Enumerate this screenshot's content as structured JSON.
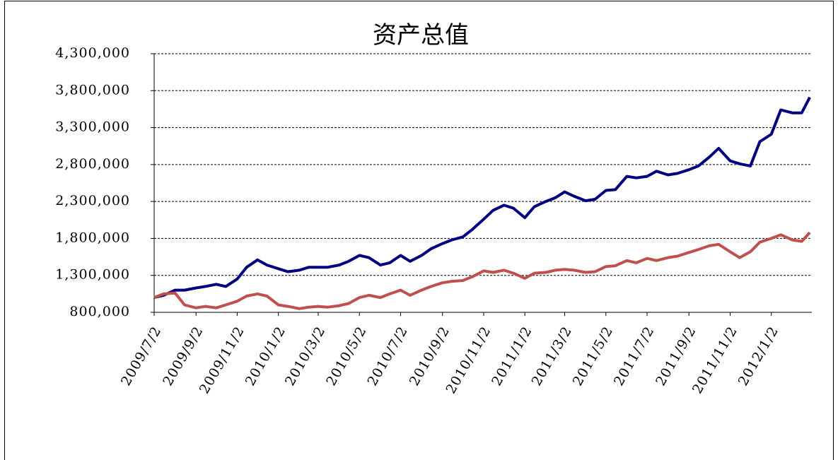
{
  "chart_data": {
    "type": "line",
    "title": "资产总值",
    "x": [
      "2009/7/2",
      "2009/7/16",
      "2009/8/2",
      "2009/8/16",
      "2009/9/2",
      "2009/9/16",
      "2009/10/2",
      "2009/10/16",
      "2009/11/2",
      "2009/11/16",
      "2009/12/2",
      "2009/12/16",
      "2010/1/2",
      "2010/1/16",
      "2010/2/2",
      "2010/2/16",
      "2010/3/2",
      "2010/3/16",
      "2010/4/2",
      "2010/4/16",
      "2010/5/2",
      "2010/5/16",
      "2010/6/2",
      "2010/6/16",
      "2010/7/2",
      "2010/7/16",
      "2010/8/2",
      "2010/8/16",
      "2010/9/2",
      "2010/9/16",
      "2010/10/2",
      "2010/10/16",
      "2010/11/2",
      "2010/11/16",
      "2010/12/2",
      "2010/12/16",
      "2011/1/2",
      "2011/1/16",
      "2011/2/2",
      "2011/2/16",
      "2011/3/2",
      "2011/3/16",
      "2011/4/2",
      "2011/4/16",
      "2011/5/2",
      "2011/5/16",
      "2011/6/2",
      "2011/6/16",
      "2011/7/2",
      "2011/7/16",
      "2011/8/2",
      "2011/8/16",
      "2011/9/2",
      "2011/9/16",
      "2011/10/2",
      "2011/10/16",
      "2011/11/2",
      "2011/11/16",
      "2011/12/2",
      "2011/12/16",
      "2012/1/2",
      "2012/1/16",
      "2012/2/2",
      "2012/2/16",
      "2012/2/28"
    ],
    "series": [
      {
        "color": "#000080",
        "values": [
          1000000,
          1030000,
          1100000,
          1100000,
          1130000,
          1150000,
          1180000,
          1150000,
          1250000,
          1410000,
          1510000,
          1440000,
          1390000,
          1350000,
          1370000,
          1410000,
          1410000,
          1410000,
          1440000,
          1490000,
          1570000,
          1540000,
          1440000,
          1470000,
          1570000,
          1490000,
          1570000,
          1660000,
          1730000,
          1780000,
          1820000,
          1920000,
          2060000,
          2180000,
          2250000,
          2210000,
          2080000,
          2230000,
          2300000,
          2350000,
          2430000,
          2370000,
          2310000,
          2330000,
          2450000,
          2460000,
          2640000,
          2620000,
          2640000,
          2710000,
          2660000,
          2680000,
          2730000,
          2780000,
          2900000,
          3020000,
          2850000,
          2810000,
          2780000,
          3110000,
          3210000,
          3540000,
          3500000,
          3500000,
          3710000
        ]
      },
      {
        "color": "#C0504D",
        "values": [
          1000000,
          1050000,
          1060000,
          900000,
          860000,
          880000,
          860000,
          900000,
          950000,
          1020000,
          1050000,
          1020000,
          900000,
          880000,
          850000,
          870000,
          880000,
          870000,
          890000,
          920000,
          1000000,
          1030000,
          1000000,
          1050000,
          1100000,
          1030000,
          1100000,
          1150000,
          1200000,
          1220000,
          1230000,
          1280000,
          1360000,
          1340000,
          1370000,
          1330000,
          1260000,
          1330000,
          1340000,
          1370000,
          1380000,
          1370000,
          1340000,
          1350000,
          1420000,
          1430000,
          1500000,
          1470000,
          1530000,
          1500000,
          1540000,
          1560000,
          1610000,
          1650000,
          1700000,
          1720000,
          1620000,
          1540000,
          1620000,
          1750000,
          1800000,
          1850000,
          1780000,
          1760000,
          1880000
        ]
      }
    ],
    "xlim": [
      "2009/7/2",
      "2012/3/2"
    ],
    "xticks": [
      "2009/7/2",
      "2009/9/2",
      "2009/11/2",
      "2010/1/2",
      "2010/3/2",
      "2010/5/2",
      "2010/7/2",
      "2010/9/2",
      "2010/11/2",
      "2011/1/2",
      "2011/3/2",
      "2011/5/2",
      "2011/7/2",
      "2011/9/2",
      "2011/11/2",
      "2012/1/2"
    ],
    "ylim": [
      800000,
      4300000
    ],
    "yticks": [
      {
        "value": 800000,
        "label": "800,000"
      },
      {
        "value": 1300000,
        "label": "1,300,000"
      },
      {
        "value": 1800000,
        "label": "1,800,000"
      },
      {
        "value": 2300000,
        "label": "2,300,000"
      },
      {
        "value": 2800000,
        "label": "2,800,000"
      },
      {
        "value": 3300000,
        "label": "3,300,000"
      },
      {
        "value": 3800000,
        "label": "3,800,000"
      },
      {
        "value": 4300000,
        "label": "4,300,000"
      }
    ],
    "grid": true
  }
}
